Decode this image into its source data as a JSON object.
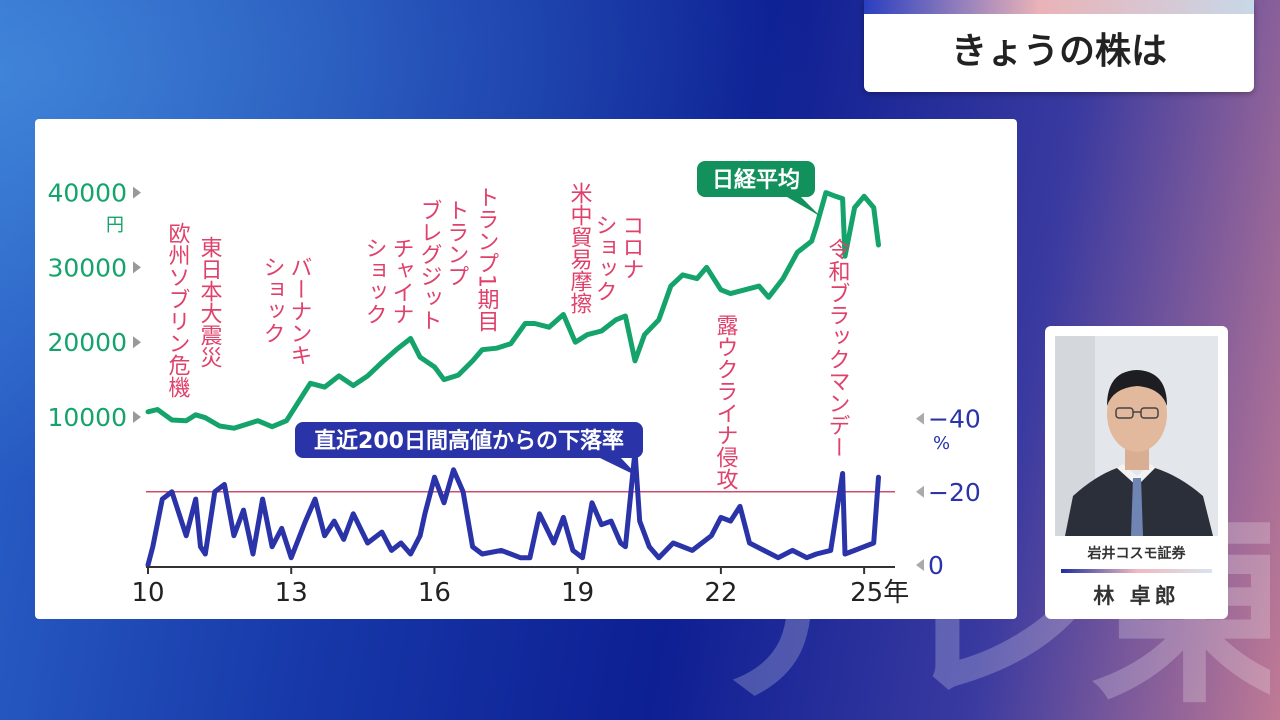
{
  "header": {
    "title": "きょうの株は"
  },
  "watermark": {
    "text": "テレ東"
  },
  "person": {
    "company": "岩井コスモ証券",
    "name": "林 卓郎"
  },
  "chart_data": {
    "type": "line",
    "x_axis": {
      "ticks": [
        "10",
        "13",
        "16",
        "19",
        "22",
        "25年"
      ],
      "tick_years": [
        2010,
        2013,
        2016,
        2019,
        2022,
        2025
      ],
      "range": [
        2010,
        2025.5
      ]
    },
    "left_axis": {
      "ticks": [
        "10000",
        "20000",
        "30000",
        "40000"
      ],
      "tick_values": [
        10000,
        20000,
        30000,
        40000
      ],
      "unit": "円",
      "color": "#14a36a"
    },
    "right_axis": {
      "ticks": [
        "0",
        "−20",
        "−40"
      ],
      "tick_values": [
        0,
        -20,
        -40
      ],
      "unit": "%",
      "color": "#2a33a8",
      "reference_line": -20
    },
    "series": [
      {
        "name": "日経平均",
        "color": "#14a36a",
        "x": [
          2010.0,
          2010.2,
          2010.5,
          2010.8,
          2011.0,
          2011.2,
          2011.5,
          2011.8,
          2012.0,
          2012.3,
          2012.6,
          2012.9,
          2013.1,
          2013.4,
          2013.7,
          2014.0,
          2014.3,
          2014.6,
          2014.9,
          2015.2,
          2015.5,
          2015.7,
          2016.0,
          2016.2,
          2016.5,
          2016.8,
          2017.0,
          2017.3,
          2017.6,
          2017.9,
          2018.1,
          2018.4,
          2018.7,
          2018.95,
          2019.2,
          2019.5,
          2019.8,
          2020.0,
          2020.2,
          2020.4,
          2020.7,
          2020.95,
          2021.2,
          2021.5,
          2021.7,
          2022.0,
          2022.2,
          2022.5,
          2022.8,
          2023.0,
          2023.3,
          2023.6,
          2023.9,
          2024.0,
          2024.2,
          2024.4,
          2024.55,
          2024.6,
          2024.8,
          2025.0,
          2025.2,
          2025.3
        ],
        "values": [
          10700,
          11000,
          9600,
          9500,
          10300,
          9900,
          8800,
          8500,
          8900,
          9500,
          8700,
          9500,
          11500,
          14500,
          14000,
          15500,
          14200,
          15500,
          17300,
          19000,
          20500,
          18000,
          16700,
          15000,
          15600,
          17500,
          19000,
          19200,
          19800,
          22500,
          22500,
          22000,
          23700,
          20000,
          21000,
          21500,
          23000,
          23500,
          17500,
          21000,
          23000,
          27500,
          29000,
          28500,
          30000,
          27000,
          26500,
          27000,
          27500,
          26000,
          28500,
          32000,
          33500,
          35500,
          40000,
          39500,
          39200,
          31500,
          38000,
          39500,
          38000,
          33000
        ]
      },
      {
        "name": "直近200日間高値からの下落率",
        "color": "#2a33a8",
        "x": [
          2010.0,
          2010.1,
          2010.3,
          2010.5,
          2010.8,
          2011.0,
          2011.1,
          2011.2,
          2011.4,
          2011.6,
          2011.8,
          2012.0,
          2012.2,
          2012.4,
          2012.6,
          2012.8,
          2013.0,
          2013.3,
          2013.5,
          2013.7,
          2013.9,
          2014.1,
          2014.3,
          2014.6,
          2014.9,
          2015.1,
          2015.3,
          2015.5,
          2015.7,
          2015.8,
          2016.0,
          2016.2,
          2016.4,
          2016.6,
          2016.8,
          2017.0,
          2017.4,
          2017.8,
          2018.0,
          2018.2,
          2018.5,
          2018.7,
          2018.9,
          2019.1,
          2019.3,
          2019.5,
          2019.7,
          2019.9,
          2020.0,
          2020.2,
          2020.3,
          2020.5,
          2020.7,
          2021.0,
          2021.4,
          2021.8,
          2022.0,
          2022.2,
          2022.4,
          2022.6,
          2022.9,
          2023.2,
          2023.5,
          2023.8,
          2024.0,
          2024.3,
          2024.55,
          2024.6,
          2024.8,
          2025.0,
          2025.2,
          2025.3
        ],
        "values": [
          0,
          -5,
          -18,
          -20,
          -8,
          -18,
          -5,
          -3,
          -20,
          -22,
          -8,
          -15,
          -3,
          -18,
          -5,
          -10,
          -2,
          -12,
          -18,
          -8,
          -12,
          -7,
          -14,
          -6,
          -9,
          -4,
          -6,
          -3,
          -8,
          -14,
          -24,
          -17,
          -26,
          -20,
          -5,
          -3,
          -4,
          -2,
          -2,
          -14,
          -6,
          -13,
          -4,
          -2,
          -17,
          -11,
          -12,
          -6,
          -5,
          -31,
          -12,
          -5,
          -2,
          -6,
          -4,
          -8,
          -13,
          -12,
          -16,
          -6,
          -4,
          -2,
          -4,
          -2,
          -3,
          -4,
          -25,
          -3,
          -4,
          -5,
          -6,
          -24
        ]
      }
    ],
    "event_labels": [
      "欧州ソブリン危機",
      "東日本大震災",
      "バーナンキ\nショック",
      "チャイナ\nショック",
      "トランプ\nブレグジット",
      "トランプ1期目",
      "米中貿易摩擦",
      "コロナ\nショック",
      "露ウクライナ侵攻",
      "令和ブラックマンデー"
    ],
    "callouts": {
      "green": "日経平均",
      "blue": "直近200日間高値からの下落率"
    }
  }
}
